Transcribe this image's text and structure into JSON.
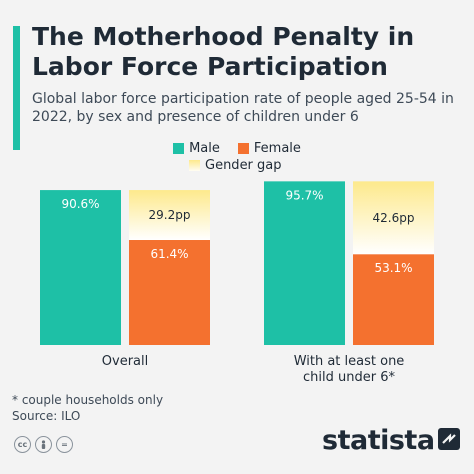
{
  "header": {
    "title": "The Motherhood Penalty in Labor Force Participation",
    "subtitle": "Global labor force participation rate of people aged 25-54 in 2022, by sex and presence of children under 6"
  },
  "legend": {
    "male": "Male",
    "female": "Female",
    "gap": "Gender gap"
  },
  "colors": {
    "male": "#1ec0a6",
    "female": "#f4712f",
    "gap_top": "#fde98c",
    "gap_bottom": "#ffffff"
  },
  "chart_data": {
    "type": "bar",
    "categories": [
      "Overall",
      "With at least one child under 6*"
    ],
    "category_lines": [
      [
        "Overall"
      ],
      [
        "With at least one",
        "child under 6*"
      ]
    ],
    "series": [
      {
        "name": "Male",
        "values": [
          90.6,
          95.7
        ],
        "labels": [
          "90.6%",
          "95.7%"
        ]
      },
      {
        "name": "Female",
        "values": [
          61.4,
          53.1
        ],
        "labels": [
          "61.4%",
          "53.1%"
        ]
      },
      {
        "name": "Gender gap",
        "values": [
          29.2,
          42.6
        ],
        "labels": [
          "29.2pp",
          "42.6pp"
        ]
      }
    ],
    "ylim": [
      0,
      100
    ],
    "legend_position": "top"
  },
  "footer": {
    "note": "* couple households only",
    "source": "Source: ILO",
    "brand": "statista"
  },
  "icons": [
    "cc-icon",
    "person-icon",
    "equals-icon",
    "statista-logo-icon"
  ]
}
